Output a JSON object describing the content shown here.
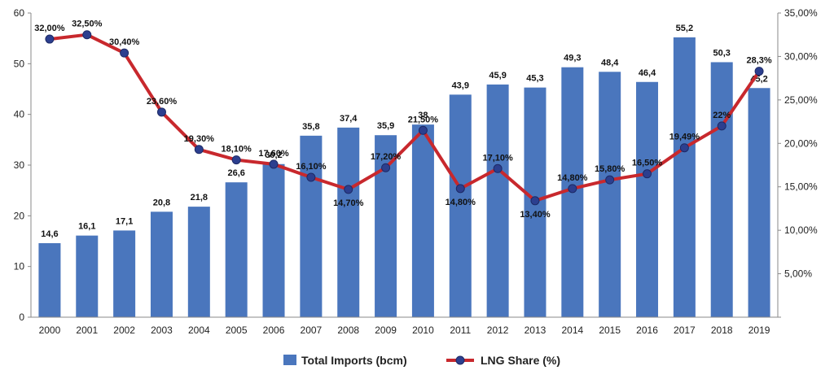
{
  "chart_data": {
    "type": "bar",
    "categories": [
      "2000",
      "2001",
      "2002",
      "2003",
      "2004",
      "2005",
      "2006",
      "2007",
      "2008",
      "2009",
      "2010",
      "2011",
      "2012",
      "2013",
      "2014",
      "2015",
      "2016",
      "2017",
      "2018",
      "2019"
    ],
    "series": [
      {
        "name": "Total Imports (bcm)",
        "type": "bar",
        "axis": "left",
        "color": "#4a76bd",
        "values": [
          14.6,
          16.1,
          17.1,
          20.8,
          21.8,
          26.6,
          30.2,
          35.8,
          37.4,
          35.9,
          38,
          43.9,
          45.9,
          45.3,
          49.3,
          48.4,
          46.4,
          55.2,
          50.3,
          45.2
        ],
        "labels": [
          "14,6",
          "16,1",
          "17,1",
          "20,8",
          "21,8",
          "26,6",
          "30,2",
          "35,8",
          "37,4",
          "35,9",
          "38",
          "43,9",
          "45,9",
          "45,3",
          "49,3",
          "48,4",
          "46,4",
          "55,2",
          "50,3",
          "45,2"
        ]
      },
      {
        "name": "LNG Share (%)",
        "type": "line",
        "axis": "right",
        "color": "#c8282d",
        "marker_color": "#2c3f8f",
        "values": [
          32.0,
          32.5,
          30.4,
          23.6,
          19.3,
          18.1,
          17.6,
          16.1,
          14.7,
          17.2,
          21.5,
          14.8,
          17.1,
          13.4,
          14.8,
          15.8,
          16.5,
          19.49,
          22,
          28.3
        ],
        "labels": [
          "32,00%",
          "32,50%",
          "30,40%",
          "23,60%",
          "19,30%",
          "18,10%",
          "17,60%",
          "16,10%",
          "14,70%",
          "17,20%",
          "21,50%",
          "14,80%",
          "17,10%",
          "13,40%",
          "14,80%",
          "15,80%",
          "16,50%",
          "19,49%",
          "22%",
          "28,3%"
        ]
      }
    ],
    "left_axis": {
      "min": 0,
      "max": 60,
      "step": 10,
      "tick_labels": [
        "0",
        "10",
        "20",
        "30",
        "40",
        "50",
        "60"
      ]
    },
    "right_axis": {
      "min": 0,
      "max": 35,
      "step": 5,
      "tick_labels": [
        "",
        "5,00%",
        "10,00%",
        "15,00%",
        "20,00%",
        "25,00%",
        "30,00%",
        "35,00%"
      ]
    },
    "legend": {
      "position": "bottom",
      "items": [
        {
          "label": "Total Imports (bcm)",
          "kind": "bar-swatch"
        },
        {
          "label": "LNG Share (%)",
          "kind": "line-marker"
        }
      ]
    },
    "grid": false
  }
}
